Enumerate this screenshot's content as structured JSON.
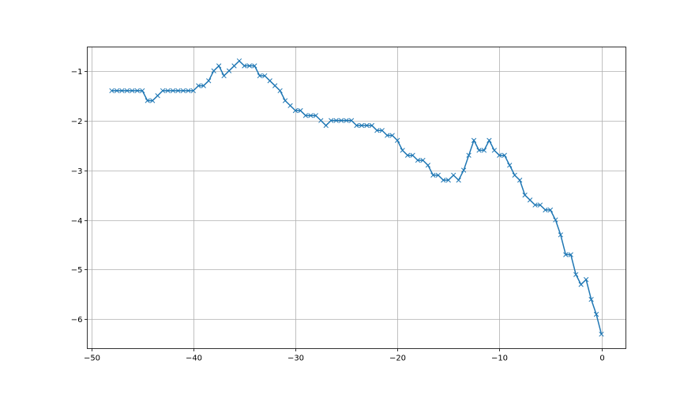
{
  "chart_data": {
    "type": "line",
    "title": "",
    "xlabel": "",
    "ylabel": "",
    "xlim": [
      -50.4,
      2.4
    ],
    "ylim": [
      -6.59,
      -0.52
    ],
    "grid": true,
    "marker": "x",
    "color": "#1f77b4",
    "xticks": [
      -50,
      -40,
      -30,
      -20,
      -10,
      0
    ],
    "xtick_labels": [
      "−50",
      "−40",
      "−30",
      "−20",
      "−10",
      "0"
    ],
    "yticks": [
      -1,
      -2,
      -3,
      -4,
      -5,
      -6
    ],
    "ytick_labels": [
      "−1",
      "−2",
      "−3",
      "−4",
      "−5",
      "−6"
    ],
    "x_start": -48,
    "x_step": 0.5,
    "values": [
      -1.4,
      -1.4,
      -1.4,
      -1.4,
      -1.4,
      -1.4,
      -1.4,
      -1.6,
      -1.6,
      -1.5,
      -1.4,
      -1.4,
      -1.4,
      -1.4,
      -1.4,
      -1.4,
      -1.4,
      -1.3,
      -1.3,
      -1.2,
      -1.0,
      -0.9,
      -1.1,
      -1.0,
      -0.9,
      -0.8,
      -0.9,
      -0.9,
      -0.9,
      -1.1,
      -1.1,
      -1.2,
      -1.3,
      -1.4,
      -1.6,
      -1.7,
      -1.8,
      -1.8,
      -1.9,
      -1.9,
      -1.9,
      -2.0,
      -2.1,
      -2.0,
      -2.0,
      -2.0,
      -2.0,
      -2.0,
      -2.1,
      -2.1,
      -2.1,
      -2.1,
      -2.2,
      -2.2,
      -2.3,
      -2.3,
      -2.4,
      -2.6,
      -2.7,
      -2.7,
      -2.8,
      -2.8,
      -2.9,
      -3.1,
      -3.1,
      -3.2,
      -3.2,
      -3.1,
      -3.2,
      -3.0,
      -2.7,
      -2.4,
      -2.6,
      -2.6,
      -2.4,
      -2.6,
      -2.7,
      -2.7,
      -2.9,
      -3.1,
      -3.2,
      -3.5,
      -3.6,
      -3.7,
      -3.7,
      -3.8,
      -3.8,
      -4.0,
      -4.3,
      -4.7,
      -4.7,
      -5.1,
      -5.3,
      -5.2,
      -5.6,
      -5.9,
      -6.3
    ]
  }
}
